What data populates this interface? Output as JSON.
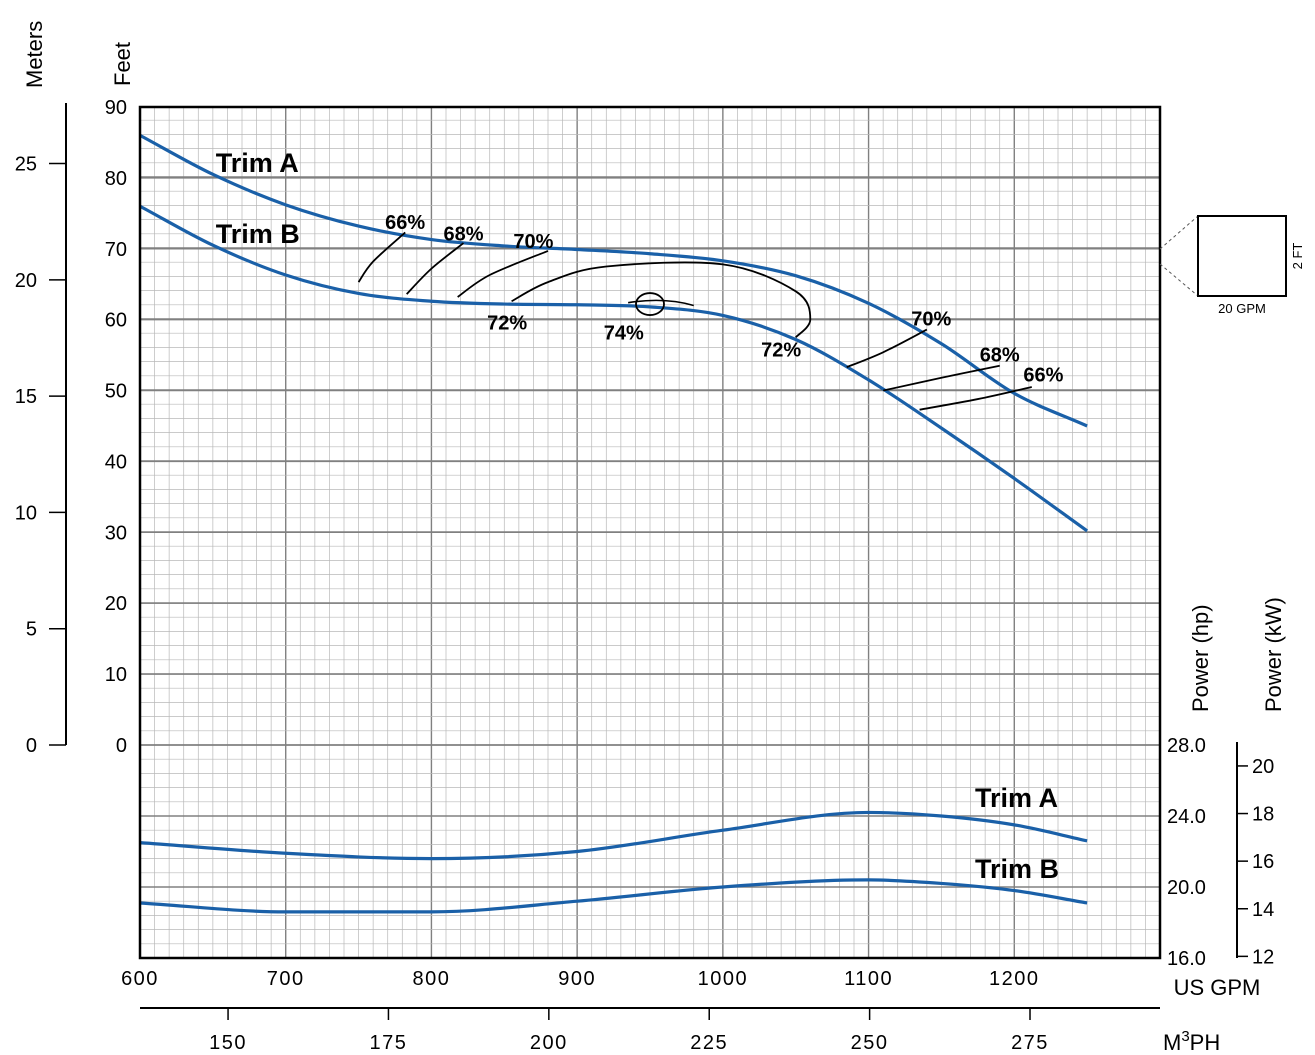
{
  "chart_data": {
    "type": "line",
    "title": "",
    "x_axis": {
      "label": "US GPM",
      "range": [
        600,
        1300
      ],
      "ticks": [
        600,
        700,
        800,
        900,
        1000,
        1100,
        1200
      ],
      "tick_labels": [
        "600",
        "700",
        "800",
        "900",
        "1000",
        "1100",
        "1200"
      ],
      "grid": true
    },
    "x2_axis": {
      "label": "M³PH",
      "label_base": "M",
      "label_sup": "3",
      "label_tail": "PH",
      "ticks": [
        150,
        175,
        200,
        225,
        250,
        275
      ],
      "tick_labels": [
        "150",
        "175",
        "200",
        "225",
        "250",
        "275"
      ]
    },
    "head_axis_feet": {
      "label": "Feet",
      "range": [
        0,
        90
      ],
      "ticks": [
        0,
        10,
        20,
        30,
        40,
        50,
        60,
        70,
        80,
        90
      ],
      "tick_labels": [
        "0",
        "10",
        "20",
        "30",
        "40",
        "50",
        "60",
        "70",
        "80",
        "90"
      ]
    },
    "head_axis_meters": {
      "label": "Meters",
      "ticks": [
        0,
        5,
        10,
        15,
        20,
        25
      ],
      "tick_labels": [
        "0",
        "5",
        "10",
        "15",
        "20",
        "25"
      ]
    },
    "power_axis_hp": {
      "label": "Power (hp)",
      "range": [
        16,
        28
      ],
      "ticks": [
        16,
        20,
        24,
        28
      ],
      "tick_labels": [
        "16.0",
        "20.0",
        "24.0",
        "28.0"
      ]
    },
    "power_axis_kw": {
      "label": "Power (kW)",
      "ticks": [
        12,
        14,
        16,
        18,
        20
      ],
      "tick_labels": [
        "12",
        "14",
        "16",
        "18",
        "20"
      ]
    },
    "head_series": [
      {
        "name": "Trim A",
        "x": [
          600,
          650,
          700,
          750,
          800,
          850,
          900,
          950,
          1000,
          1050,
          1100,
          1150,
          1200,
          1250
        ],
        "y": [
          86,
          80.5,
          76.2,
          73.2,
          71.3,
          70.4,
          69.9,
          69.3,
          68.3,
          66.2,
          62.3,
          56.6,
          49.6,
          45
        ]
      },
      {
        "name": "Trim B",
        "x": [
          600,
          650,
          700,
          750,
          800,
          850,
          900,
          950,
          1000,
          1050,
          1100,
          1150,
          1200,
          1250
        ],
        "y": [
          76,
          70.5,
          66.3,
          63.7,
          62.6,
          62.2,
          62.1,
          61.8,
          60.6,
          57.2,
          51.5,
          44.7,
          37.6,
          30.2
        ]
      }
    ],
    "power_series": [
      {
        "name": "Trim A",
        "x": [
          600,
          700,
          800,
          900,
          1000,
          1100,
          1150,
          1200,
          1250
        ],
        "y": [
          22.5,
          21.9,
          21.6,
          22.0,
          23.2,
          24.2,
          24.0,
          23.5,
          22.6
        ]
      },
      {
        "name": "Trim B",
        "x": [
          600,
          700,
          800,
          900,
          1000,
          1100,
          1150,
          1200,
          1250
        ],
        "y": [
          19.1,
          18.6,
          18.6,
          19.2,
          20.0,
          20.4,
          20.2,
          19.8,
          19.1
        ]
      }
    ],
    "efficiency_contours": [
      {
        "name": "66%",
        "x": [
          750,
          760,
          782
        ],
        "y": [
          65.3,
          68.2,
          72.3
        ]
      },
      {
        "name": "68%",
        "x": [
          783,
          800,
          822
        ],
        "y": [
          63.6,
          67.2,
          70.8
        ]
      },
      {
        "name": "70%",
        "x": [
          818,
          840,
          880
        ],
        "y": [
          63.2,
          66.3,
          69.7
        ]
      },
      {
        "name": "72%",
        "x": [
          855,
          880,
          920,
          1000,
          1050,
          1060,
          1050
        ],
        "y": [
          62.6,
          65.3,
          67.5,
          67.8,
          64.0,
          60.0,
          57.5
        ]
      },
      {
        "name": "70%",
        "x": [
          1085,
          1110,
          1140
        ],
        "y": [
          53.3,
          55.4,
          58.6
        ]
      },
      {
        "name": "68%",
        "x": [
          1110,
          1150,
          1190
        ],
        "y": [
          50.0,
          51.8,
          53.5
        ]
      },
      {
        "name": "66%",
        "x": [
          1135,
          1175,
          1212
        ],
        "y": [
          47.3,
          48.8,
          50.5
        ]
      },
      {
        "name": "74%",
        "x": [
          950
        ],
        "y": [
          62.2
        ]
      }
    ],
    "efficiency_labels": [
      {
        "text": "66%",
        "x": 782,
        "y": 72.8
      },
      {
        "text": "68%",
        "x": 822,
        "y": 71.2
      },
      {
        "text": "70%",
        "x": 870,
        "y": 70.1
      },
      {
        "text": "72%",
        "x": 852,
        "y": 58.6
      },
      {
        "text": "74%",
        "x": 932,
        "y": 57.2
      },
      {
        "text": "72%",
        "x": 1040,
        "y": 54.8
      },
      {
        "text": "70%",
        "x": 1143,
        "y": 59.2
      },
      {
        "text": "68%",
        "x": 1190,
        "y": 54.1
      },
      {
        "text": "66%",
        "x": 1220,
        "y": 51.3
      }
    ],
    "trim_labels": [
      {
        "text": "Trim A",
        "x": 652,
        "y": 80.8
      },
      {
        "text": "Trim B",
        "x": 652,
        "y": 70.8
      }
    ],
    "power_trim_labels": [
      {
        "text": "Trim A",
        "x": 1173,
        "y": 24.5
      },
      {
        "text": "Trim B",
        "x": 1173,
        "y": 20.5
      }
    ],
    "scale_box": {
      "width_label": "20 GPM",
      "height_label": "2 FT"
    },
    "colors": {
      "curve": "#1a60a8",
      "contour": "#000000",
      "grid_major": "#808080",
      "grid_minor": "#b8b8b8"
    }
  }
}
